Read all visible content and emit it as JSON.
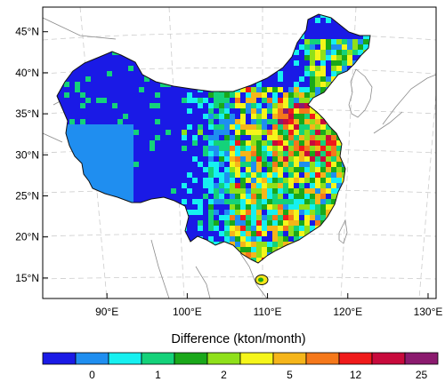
{
  "map": {
    "lon_range": [
      82,
      131
    ],
    "lat_range": [
      12.5,
      48
    ],
    "latitude_ticks": [
      {
        "value": 45,
        "label": "45°N"
      },
      {
        "value": 40,
        "label": "40°N"
      },
      {
        "value": 35,
        "label": "35°N"
      },
      {
        "value": 30,
        "label": "30°N"
      },
      {
        "value": 25,
        "label": "25°N"
      },
      {
        "value": 20,
        "label": "20°N"
      },
      {
        "value": 15,
        "label": "15°N"
      }
    ],
    "longitude_ticks": [
      {
        "value": 90,
        "label": "90°E"
      },
      {
        "value": 100,
        "label": "100°E"
      },
      {
        "value": 110,
        "label": "110°E"
      },
      {
        "value": 120,
        "label": "120°E"
      },
      {
        "value": 130,
        "label": "130°E"
      }
    ],
    "region": "China",
    "gridlines": "dashed",
    "field_description": "gridded emission difference, high values concentrated over eastern and central China"
  },
  "colorbar": {
    "title": "Difference (kton/month)",
    "colors": [
      "#1a1ae6",
      "#1f8ef0",
      "#16f0f0",
      "#14d27a",
      "#1aa81a",
      "#8fe01a",
      "#f5f51a",
      "#f5b51a",
      "#f5781a",
      "#f01a1a",
      "#c80a3c",
      "#8b1a6e"
    ],
    "labels": [
      {
        "text": "0",
        "boundary": 1
      },
      {
        "text": "1",
        "boundary": 3
      },
      {
        "text": "2",
        "boundary": 5
      },
      {
        "text": "5",
        "boundary": 7
      },
      {
        "text": "12",
        "boundary": 9
      },
      {
        "text": "25",
        "boundary": 11
      }
    ]
  }
}
